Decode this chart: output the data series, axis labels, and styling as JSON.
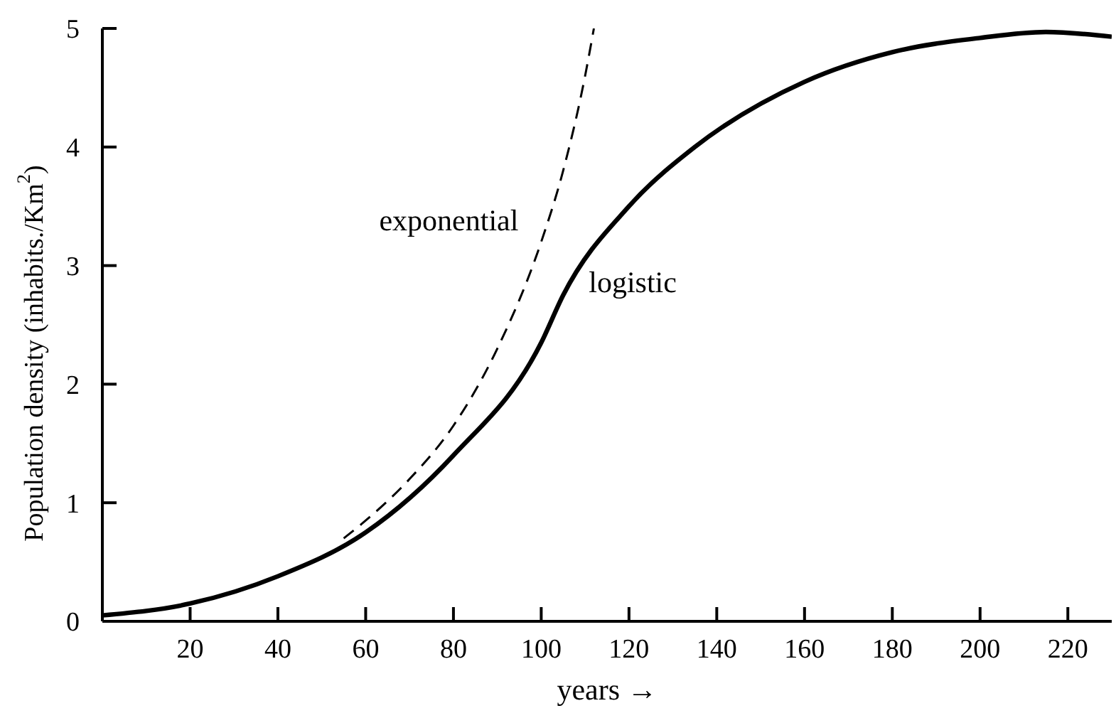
{
  "chart_data": {
    "type": "line",
    "xlabel": "years →",
    "ylabel": "Population density (inhabits./Km$^{2}$)",
    "xlim": [
      0,
      230
    ],
    "xticks": [
      20,
      40,
      60,
      80,
      100,
      120,
      140,
      160,
      180,
      200,
      220
    ],
    "ylim": [
      0,
      5
    ],
    "yticks": [
      0,
      1,
      2,
      3,
      4,
      5
    ],
    "grid": false,
    "legend": false,
    "marker": "none",
    "series": [
      {
        "name": "exponential",
        "color": "#000000",
        "line_style": "dashed",
        "x": [
          55,
          60,
          70,
          80,
          90,
          100,
          105,
          110,
          112
        ],
        "values": [
          0.7,
          0.85,
          1.2,
          1.65,
          2.3,
          3.2,
          3.8,
          4.6,
          5.0
        ]
      },
      {
        "name": "logistic",
        "color": "#000000",
        "line_style": "solid",
        "x": [
          0,
          20,
          40,
          60,
          80,
          100,
          105,
          120,
          135,
          160,
          180,
          200,
          215,
          230
        ],
        "values": [
          0.05,
          0.15,
          0.38,
          0.75,
          1.4,
          2.35,
          2.75,
          3.5,
          4.0,
          4.55,
          4.8,
          4.92,
          4.97,
          4.93
        ]
      }
    ]
  }
}
